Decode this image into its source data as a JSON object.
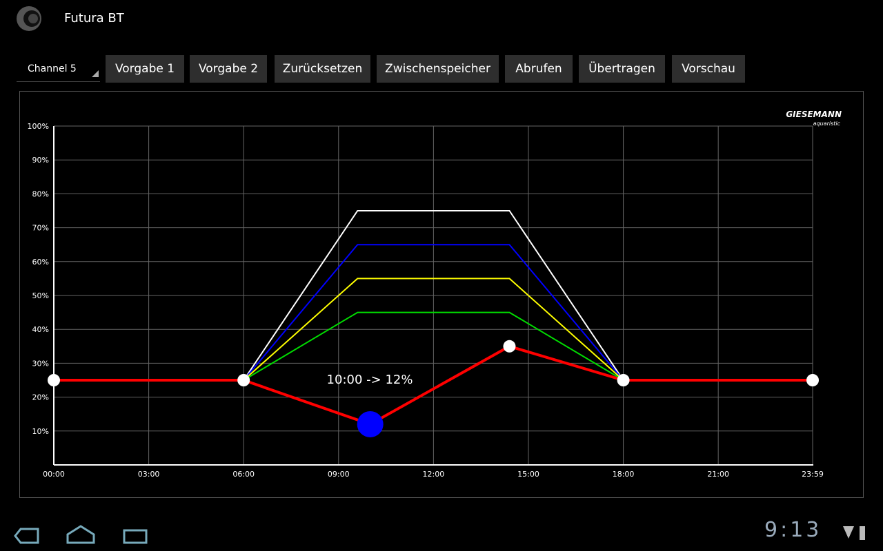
{
  "app": {
    "title": "Futura BT",
    "channel": "Channel 5",
    "buttons": [
      "Vorgabe 1",
      "Vorgabe 2",
      "Zurücksetzen",
      "Zwischenspeicher",
      "Abrufen",
      "Übertragen",
      "Vorschau"
    ],
    "brand": "GIESEMANN",
    "brand_sub": "aquaristic",
    "clock": "9:13"
  },
  "chart_data": {
    "type": "line",
    "annotation": "10:00 -> 12%",
    "grid": true,
    "selected_point": 2,
    "xlim": [
      0,
      23.9833
    ],
    "ylim": [
      0,
      100
    ],
    "xticks": [
      {
        "value": 0,
        "label": "00:00"
      },
      {
        "value": 3,
        "label": "03:00"
      },
      {
        "value": 6,
        "label": "06:00"
      },
      {
        "value": 9,
        "label": "09:00"
      },
      {
        "value": 12,
        "label": "12:00"
      },
      {
        "value": 15,
        "label": "15:00"
      },
      {
        "value": 18,
        "label": "18:00"
      },
      {
        "value": 21,
        "label": "21:00"
      },
      {
        "value": 23.9833,
        "label": "23:59"
      }
    ],
    "yticks": [
      {
        "value": 10,
        "label": "10%"
      },
      {
        "value": 20,
        "label": "20%"
      },
      {
        "value": 30,
        "label": "30%"
      },
      {
        "value": 40,
        "label": "40%"
      },
      {
        "value": 50,
        "label": "50%"
      },
      {
        "value": 60,
        "label": "60%"
      },
      {
        "value": 70,
        "label": "70%"
      },
      {
        "value": 80,
        "label": "80%"
      },
      {
        "value": 90,
        "label": "90%"
      },
      {
        "value": 100,
        "label": "100%"
      }
    ],
    "series": [
      {
        "color": "#ffffff",
        "x": [
          6,
          9.6,
          14.4,
          18
        ],
        "values": [
          25,
          75,
          75,
          25
        ]
      },
      {
        "color": "#0000ff",
        "x": [
          6,
          9.6,
          14.4,
          18
        ],
        "values": [
          25,
          65,
          65,
          25
        ]
      },
      {
        "color": "#ffff00",
        "x": [
          6,
          9.6,
          14.4,
          18
        ],
        "values": [
          25,
          55,
          55,
          25
        ]
      },
      {
        "color": "#00dd00",
        "x": [
          6,
          9.6,
          14.4,
          18
        ],
        "values": [
          25,
          45,
          45,
          25
        ]
      },
      {
        "color": "#ff0000",
        "x": [
          0,
          6,
          10,
          14.4,
          18,
          23.9833
        ],
        "values": [
          25,
          25,
          12,
          35,
          25,
          25
        ]
      }
    ]
  }
}
